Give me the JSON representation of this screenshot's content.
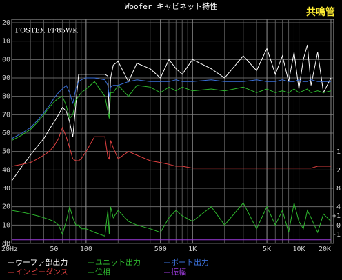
{
  "chart_data": {
    "type": "line",
    "title": "Woofer キャビネット特性",
    "badge": "共鳴管",
    "annotation": "FOSTEX FF85WK",
    "log_x": true,
    "grid": true,
    "xlim": [
      20,
      20000
    ],
    "xticks": [
      {
        "value": 20,
        "label": "20Hz"
      },
      50,
      100,
      500,
      {
        "value": 1000,
        "label": "1K"
      },
      {
        "value": 5000,
        "label": "5K"
      },
      {
        "value": 10000,
        "label": "10K"
      },
      {
        "value": 20000,
        "label": "20K"
      }
    ],
    "ylim": [
      0,
      120
    ],
    "yticks": [
      {
        "value": 120,
        "label": "20"
      },
      {
        "value": 110,
        "label": "10"
      },
      {
        "value": 100,
        "label": "00"
      },
      90,
      80,
      70,
      60,
      50,
      40,
      30,
      20,
      10,
      {
        "value": 0,
        "label": "dB"
      }
    ],
    "right_labels": [
      "1",
      "2",
      "8",
      "4",
      "+1",
      "0",
      "-1"
    ],
    "x": [
      20,
      25,
      30,
      35,
      40,
      45,
      50,
      55,
      60,
      65,
      70,
      75,
      80,
      85,
      90,
      100,
      120,
      150,
      160,
      165,
      170,
      180,
      200,
      250,
      300,
      400,
      500,
      600,
      700,
      800,
      1000,
      1500,
      2000,
      3000,
      4000,
      5000,
      6000,
      7000,
      8000,
      9000,
      10000,
      11000,
      12000,
      13000,
      15000,
      17000,
      20000
    ],
    "series": [
      {
        "name": "ウーファ部出力",
        "color": "#ffffff",
        "values": [
          34,
          42,
          48,
          53,
          57,
          62,
          66,
          70,
          74,
          72,
          66,
          58,
          75,
          92,
          92,
          92,
          92,
          92,
          91,
          70,
          90,
          97,
          99,
          88,
          98,
          95,
          90,
          100,
          95,
          92,
          100,
          95,
          90,
          102,
          94,
          106,
          92,
          102,
          88,
          104,
          84,
          100,
          108,
          86,
          104,
          82,
          90
        ]
      },
      {
        "name": "ユニット出力",
        "color": "#2eb82e",
        "values": [
          56,
          59,
          62,
          66,
          70,
          74,
          77,
          79,
          80,
          75,
          68,
          70,
          78,
          80,
          82,
          84,
          88,
          80,
          72,
          68,
          82,
          82,
          86,
          80,
          86,
          85,
          82,
          85,
          83,
          85,
          83,
          84,
          83,
          85,
          82,
          84,
          82,
          83,
          82,
          84,
          82,
          83,
          84,
          82,
          83,
          82,
          83
        ]
      },
      {
        "name": "ポート出力",
        "color": "#3a6fd8",
        "values": [
          57,
          60,
          63,
          67,
          71,
          75,
          79,
          82,
          84,
          86,
          82,
          76,
          84,
          88,
          89,
          90,
          90,
          89,
          86,
          80,
          85,
          86,
          86,
          88,
          89,
          88,
          88,
          88,
          89,
          88,
          88,
          89,
          88,
          88,
          89,
          88,
          88,
          89,
          88,
          88,
          89,
          88,
          88,
          89,
          88,
          88,
          88
        ]
      },
      {
        "name": "インピーダンス",
        "color": "#e04040",
        "values": [
          42,
          43,
          44,
          46,
          48,
          50,
          53,
          57,
          63,
          58,
          52,
          46,
          45,
          45,
          46,
          50,
          58,
          58,
          47,
          46,
          56,
          52,
          46,
          50,
          48,
          45,
          44,
          43,
          42,
          42,
          41,
          41,
          41,
          41,
          41,
          41,
          41,
          41,
          41,
          41,
          41,
          41,
          41,
          41,
          42,
          42,
          42
        ]
      },
      {
        "name": "位相",
        "color": "#2eb82e",
        "values": [
          18,
          17,
          16,
          15,
          14,
          13,
          12,
          10,
          5,
          12,
          20,
          14,
          10,
          10,
          8,
          8,
          6,
          4,
          18,
          5,
          20,
          14,
          18,
          12,
          10,
          8,
          6,
          14,
          18,
          15,
          12,
          20,
          10,
          22,
          8,
          20,
          10,
          18,
          6,
          22,
          12,
          8,
          18,
          14,
          6,
          16,
          12
        ]
      },
      {
        "name": "振幅",
        "color": "#9a3ad8",
        "values": [
          2,
          2,
          2,
          2,
          2,
          2,
          2,
          2,
          2,
          2,
          2,
          2,
          2,
          2,
          2,
          2,
          2,
          2,
          2,
          2,
          2,
          2,
          2,
          2,
          2,
          2,
          2,
          2,
          2,
          2,
          2,
          2,
          2,
          2,
          2,
          2,
          2,
          2,
          2,
          2,
          2,
          2,
          2,
          2,
          2,
          2,
          2
        ]
      }
    ]
  }
}
